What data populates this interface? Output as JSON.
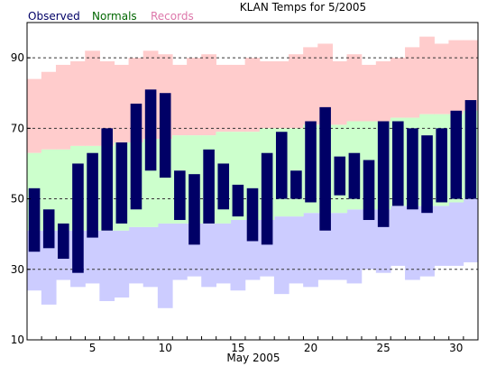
{
  "chart_data": {
    "type": "bar",
    "title": "KLAN Temps for 5/2005",
    "xlabel": "May 2005",
    "ylabel": "",
    "ylim": [
      10,
      100
    ],
    "xlim": [
      0.5,
      31.5
    ],
    "yticks": [
      10,
      30,
      50,
      70,
      90
    ],
    "xticks": [
      5,
      10,
      15,
      20,
      25,
      30
    ],
    "grid": "dashed horizontal lines at 30, 50, 70, 90",
    "legend": [
      "Observed",
      "Normals",
      "Records"
    ],
    "colors": {
      "observed": "#000066",
      "normals": "#ccffcc",
      "records": "#ffcccc",
      "low_records": "#ccccff",
      "grid": "#333333",
      "legend_observed": "#000066",
      "legend_normals": "#006600",
      "legend_records": "#dd77aa"
    },
    "days": [
      1,
      2,
      3,
      4,
      5,
      6,
      7,
      8,
      9,
      10,
      11,
      12,
      13,
      14,
      15,
      16,
      17,
      18,
      19,
      20,
      21,
      22,
      23,
      24,
      25,
      26,
      27,
      28,
      29,
      30,
      31
    ],
    "series": [
      {
        "name": "Observed",
        "high": [
          53,
          47,
          43,
          60,
          63,
          70,
          66,
          77,
          81,
          80,
          58,
          57,
          64,
          60,
          54,
          53,
          63,
          69,
          58,
          72,
          76,
          62,
          63,
          61,
          72,
          72,
          70,
          68,
          70,
          75,
          78
        ],
        "low": [
          35,
          36,
          33,
          29,
          39,
          41,
          43,
          47,
          58,
          56,
          44,
          37,
          43,
          47,
          45,
          38,
          37,
          50,
          50,
          49,
          41,
          51,
          50,
          44,
          42,
          48,
          47,
          46,
          49,
          50,
          50
        ]
      },
      {
        "name": "Normals",
        "high": [
          63,
          64,
          64,
          65,
          65,
          65,
          66,
          66,
          67,
          67,
          68,
          68,
          68,
          69,
          69,
          69,
          70,
          70,
          70,
          71,
          71,
          71,
          72,
          72,
          72,
          73,
          73,
          74,
          74,
          74,
          75
        ],
        "low": [
          41,
          41,
          41,
          41,
          41,
          41,
          41,
          42,
          42,
          43,
          43,
          43,
          43,
          43,
          44,
          44,
          44,
          45,
          45,
          46,
          46,
          46,
          47,
          47,
          47,
          48,
          48,
          48,
          48,
          49,
          50
        ]
      },
      {
        "name": "Records",
        "high": [
          84,
          86,
          88,
          89,
          92,
          89,
          88,
          90,
          92,
          91,
          88,
          90,
          91,
          88,
          88,
          90,
          89,
          89,
          91,
          93,
          94,
          89,
          91,
          88,
          89,
          90,
          93,
          96,
          94,
          95,
          95
        ],
        "low": [
          24,
          20,
          27,
          25,
          26,
          21,
          22,
          26,
          25,
          19,
          27,
          28,
          25,
          26,
          24,
          27,
          28,
          23,
          26,
          25,
          27,
          27,
          26,
          30,
          29,
          31,
          27,
          28,
          31,
          31,
          32
        ]
      }
    ]
  }
}
